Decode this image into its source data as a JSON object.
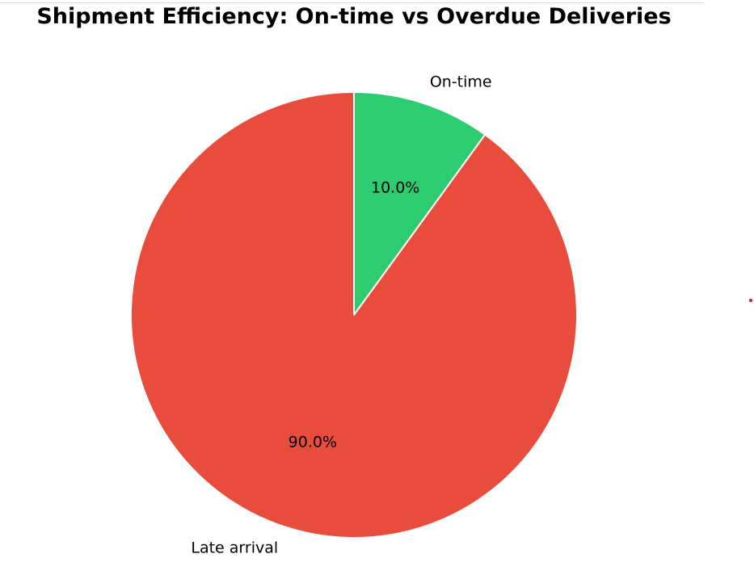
{
  "chart_data": {
    "type": "pie",
    "title": "Shipment Efficiency: On-time vs Overdue Deliveries",
    "slices": [
      {
        "label": "On-time",
        "value": 10.0,
        "pct_label": "10.0%",
        "color": "#2ecc71"
      },
      {
        "label": "Late arrival",
        "value": 90.0,
        "pct_label": "90.0%",
        "color": "#e74c3c"
      }
    ],
    "start_angle_deg": 90,
    "direction": "clockwise",
    "edge_color": "#ffffff"
  },
  "colors": {
    "on_time": "#2ecc71",
    "late": "#e74c3c",
    "marker_dot": "#d62728"
  }
}
